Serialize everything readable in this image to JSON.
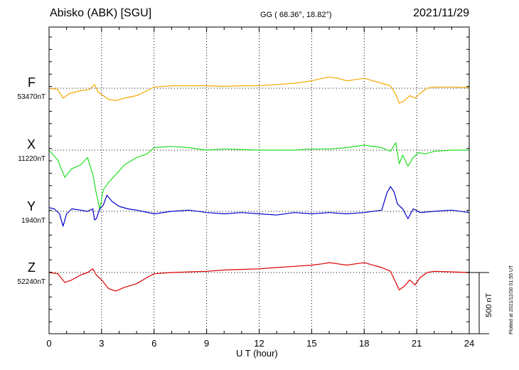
{
  "header": {
    "station": "Abisko (ABK)  [SGU]",
    "coords": "GG ( 68.36°,  18.82°)",
    "date": "2021/11/29"
  },
  "components": [
    {
      "name": "F",
      "base": "53470nT",
      "color": "#f5a800"
    },
    {
      "name": "X",
      "base": "11220nT",
      "color": "#22dd22"
    },
    {
      "name": "Y",
      "base": "1940nT",
      "color": "#0000cc"
    },
    {
      "name": "Z",
      "base": "52240nT",
      "color": "#dd0000"
    }
  ],
  "scale_label": "500 nT",
  "plotted_note": "Plotted at 2021/12/30 01:55 UT",
  "chart_data": {
    "type": "line",
    "xlabel": "U T (hour)",
    "xlim": [
      0,
      24
    ],
    "xticks": [
      0,
      3,
      6,
      9,
      12,
      15,
      18,
      21,
      24
    ],
    "units": "nT",
    "grid": true,
    "series": [
      {
        "name": "F",
        "x": [
          0,
          0.5,
          0.8,
          1.2,
          1.8,
          2.3,
          2.6,
          2.8,
          3.0,
          3.4,
          3.8,
          4.3,
          5.0,
          5.6,
          6.0,
          7,
          8,
          9,
          10,
          11,
          12,
          13,
          14,
          15,
          15.6,
          16,
          16.5,
          17,
          17.5,
          18,
          18.5,
          19,
          19.5,
          19.8,
          20,
          20.3,
          20.6,
          20.9,
          21.2,
          21.6,
          22,
          23,
          24
        ],
        "y": [
          0,
          -10,
          -80,
          -40,
          -20,
          -10,
          30,
          -30,
          -50,
          -90,
          -100,
          -80,
          -60,
          -20,
          10,
          20,
          20,
          20,
          15,
          20,
          20,
          30,
          40,
          60,
          80,
          90,
          80,
          60,
          70,
          80,
          60,
          40,
          20,
          -50,
          -120,
          -100,
          -60,
          -80,
          -40,
          0,
          10,
          10,
          5
        ]
      },
      {
        "name": "X",
        "x": [
          0,
          0.5,
          0.9,
          1.3,
          1.8,
          2.2,
          2.5,
          2.7,
          2.9,
          3.1,
          3.4,
          3.8,
          4.3,
          5.0,
          5.6,
          6.0,
          7,
          8,
          9,
          10,
          11,
          12,
          13,
          14,
          15,
          16,
          17,
          18,
          19,
          19.5,
          19.8,
          20.0,
          20.2,
          20.5,
          20.8,
          21.1,
          21.5,
          22,
          23,
          24
        ],
        "y": [
          0,
          -80,
          -220,
          -150,
          -120,
          -60,
          -200,
          -350,
          -480,
          -320,
          -260,
          -200,
          -120,
          -60,
          -30,
          20,
          30,
          20,
          0,
          10,
          5,
          0,
          0,
          0,
          10,
          10,
          20,
          40,
          20,
          -10,
          60,
          -110,
          -40,
          -130,
          -60,
          -20,
          -30,
          -10,
          0,
          0
        ]
      },
      {
        "name": "Y",
        "x": [
          0,
          0.3,
          0.6,
          0.8,
          1.0,
          1.3,
          1.8,
          2.2,
          2.5,
          2.6,
          2.7,
          2.9,
          3.1,
          3.3,
          3.6,
          4.0,
          4.5,
          5.0,
          6,
          7,
          8,
          9,
          10,
          11,
          12,
          13,
          14,
          15,
          16,
          17,
          18,
          19,
          19.3,
          19.5,
          19.7,
          19.9,
          20.2,
          20.5,
          20.8,
          21.2,
          22,
          23,
          24
        ],
        "y": [
          30,
          20,
          -20,
          -120,
          -20,
          20,
          10,
          0,
          20,
          -70,
          -60,
          20,
          50,
          130,
          80,
          40,
          20,
          10,
          -20,
          0,
          10,
          -10,
          -20,
          -10,
          -20,
          -30,
          -10,
          -20,
          -10,
          -20,
          -10,
          10,
          150,
          200,
          160,
          60,
          20,
          -60,
          20,
          -10,
          0,
          10,
          -10
        ]
      },
      {
        "name": "Z",
        "x": [
          0,
          0.5,
          0.9,
          1.3,
          1.8,
          2.2,
          2.5,
          2.7,
          3.0,
          3.4,
          3.8,
          4.3,
          5.0,
          5.6,
          6.0,
          7,
          8,
          9,
          10,
          11,
          12,
          13,
          14,
          15,
          15.6,
          16,
          16.5,
          17,
          17.5,
          18,
          18.5,
          19,
          19.5,
          19.8,
          20,
          20.3,
          20.6,
          20.9,
          21.2,
          21.6,
          22,
          23,
          24
        ],
        "y": [
          0,
          -10,
          -80,
          -60,
          -20,
          0,
          30,
          -20,
          -60,
          -130,
          -150,
          -120,
          -90,
          -40,
          -10,
          0,
          5,
          10,
          20,
          25,
          30,
          40,
          50,
          60,
          70,
          80,
          70,
          60,
          70,
          80,
          60,
          40,
          10,
          -80,
          -140,
          -110,
          -60,
          -100,
          -40,
          0,
          10,
          5,
          0
        ]
      }
    ]
  }
}
